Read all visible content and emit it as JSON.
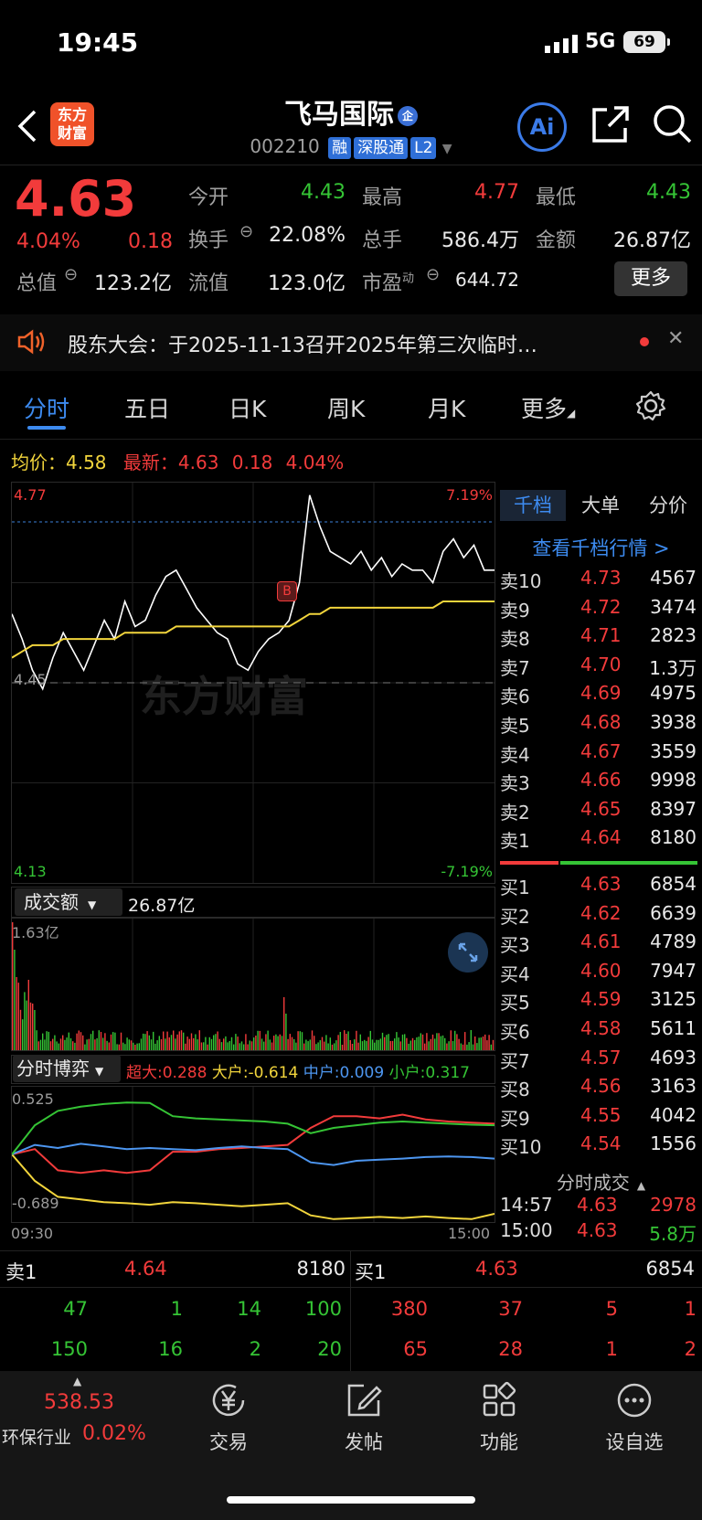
{
  "status": {
    "time": "19:45",
    "network": "5G",
    "battery": "69"
  },
  "header": {
    "logo_text": "东方财富",
    "stock_name": "飞马国际",
    "name_badge": "企",
    "code": "002210",
    "tags": [
      "融",
      "深股通",
      "L2"
    ]
  },
  "quote": {
    "price": "4.63",
    "change_pct": "4.04%",
    "change": "0.18",
    "rows": [
      [
        {
          "label": "今开",
          "value": "4.43",
          "color": "green"
        },
        {
          "label": "最高",
          "value": "4.77",
          "color": "red"
        },
        {
          "label": "最低",
          "value": "4.43",
          "color": "green"
        }
      ],
      [
        {
          "label": "换手",
          "value": "22.08%",
          "color": "white"
        },
        {
          "label": "总手",
          "value": "586.4万",
          "color": "white"
        },
        {
          "label": "金额",
          "value": "26.87亿",
          "color": "white"
        }
      ],
      [
        {
          "label": "总值",
          "value": "123.2亿",
          "color": "white"
        },
        {
          "label": "流值",
          "value": "123.0亿",
          "color": "white"
        },
        {
          "label": "市盈",
          "sup": "动",
          "value": "644.72",
          "color": "white"
        }
      ]
    ],
    "more_label": "更多"
  },
  "notice": {
    "text": "股东大会：于2025-11-13召开2025年第三次临时…"
  },
  "tabs": [
    "分时",
    "五日",
    "日K",
    "周K",
    "月K",
    "更多"
  ],
  "avg": {
    "label": "均价：",
    "value": "4.58",
    "latest_label": "最新：",
    "latest": "4.63",
    "change": "0.18",
    "pct": "4.04%"
  },
  "chart_data": {
    "type": "line",
    "title": "",
    "y_high": "4.77",
    "y_low": "4.13",
    "pct_high": "7.19%",
    "pct_low": "-7.19%",
    "prev_close": "4.45",
    "ylim": [
      4.13,
      4.77
    ],
    "watermark": "东方财富",
    "buy_marker": "B",
    "price_series": [
      4.56,
      4.52,
      4.47,
      4.44,
      4.49,
      4.53,
      4.5,
      4.47,
      4.51,
      4.55,
      4.52,
      4.58,
      4.54,
      4.55,
      4.59,
      4.62,
      4.63,
      4.6,
      4.57,
      4.55,
      4.53,
      4.52,
      4.48,
      4.47,
      4.5,
      4.52,
      4.53,
      4.55,
      4.61,
      4.75,
      4.7,
      4.66,
      4.65,
      4.64,
      4.66,
      4.63,
      4.65,
      4.62,
      4.64,
      4.63,
      4.63,
      4.61,
      4.66,
      4.68,
      4.65,
      4.67,
      4.63,
      4.63
    ],
    "avg_series": [
      4.49,
      4.5,
      4.51,
      4.51,
      4.51,
      4.52,
      4.52,
      4.52,
      4.52,
      4.52,
      4.52,
      4.53,
      4.53,
      4.53,
      4.53,
      4.53,
      4.54,
      4.54,
      4.54,
      4.54,
      4.54,
      4.54,
      4.54,
      4.54,
      4.54,
      4.54,
      4.54,
      4.54,
      4.55,
      4.56,
      4.56,
      4.57,
      4.57,
      4.57,
      4.57,
      4.57,
      4.57,
      4.57,
      4.57,
      4.57,
      4.57,
      4.57,
      4.58,
      4.58,
      4.58,
      4.58,
      4.58,
      4.58
    ],
    "amount_label": "成交额",
    "amount_total": "26.87亿",
    "amount_max": "1.63亿",
    "flow_label": "分时博弈",
    "flow_legend": [
      {
        "name": "超大",
        "value": "0.288",
        "color": "#f23b3b"
      },
      {
        "name": "大户",
        "value": "-0.614",
        "color": "#f2d53c"
      },
      {
        "name": "中户",
        "value": "0.009",
        "color": "#4d96f0"
      },
      {
        "name": "小户",
        "value": "0.317",
        "color": "#35c435"
      }
    ],
    "flow_ylim": [
      "0.525",
      "-0.689"
    ],
    "time_start": "09:30",
    "time_end": "15:00"
  },
  "orderbook": {
    "tabs": [
      "千档",
      "大单",
      "分价"
    ],
    "link": "查看千档行情 >",
    "asks": [
      {
        "label": "卖10",
        "price": "4.73",
        "vol": "4567"
      },
      {
        "label": "卖9",
        "price": "4.72",
        "vol": "3474"
      },
      {
        "label": "卖8",
        "price": "4.71",
        "vol": "2823"
      },
      {
        "label": "卖7",
        "price": "4.70",
        "vol": "1.3万"
      },
      {
        "label": "卖6",
        "price": "4.69",
        "vol": "4975"
      },
      {
        "label": "卖5",
        "price": "4.68",
        "vol": "3938"
      },
      {
        "label": "卖4",
        "price": "4.67",
        "vol": "3559"
      },
      {
        "label": "卖3",
        "price": "4.66",
        "vol": "9998"
      },
      {
        "label": "卖2",
        "price": "4.65",
        "vol": "8397"
      },
      {
        "label": "卖1",
        "price": "4.64",
        "vol": "8180"
      }
    ],
    "bids": [
      {
        "label": "买1",
        "price": "4.63",
        "vol": "6854"
      },
      {
        "label": "买2",
        "price": "4.62",
        "vol": "6639"
      },
      {
        "label": "买3",
        "price": "4.61",
        "vol": "4789"
      },
      {
        "label": "买4",
        "price": "4.60",
        "vol": "7947"
      },
      {
        "label": "买5",
        "price": "4.59",
        "vol": "3125"
      },
      {
        "label": "买6",
        "price": "4.58",
        "vol": "5611"
      },
      {
        "label": "买7",
        "price": "4.57",
        "vol": "4693"
      },
      {
        "label": "买8",
        "price": "4.56",
        "vol": "3163"
      },
      {
        "label": "买9",
        "price": "4.55",
        "vol": "4042"
      },
      {
        "label": "买10",
        "price": "4.54",
        "vol": "1556"
      }
    ],
    "ticks_title": "分时成交",
    "ticks": [
      {
        "time": "14:57",
        "price": "4.63",
        "vol": "2978",
        "color": "red"
      },
      {
        "time": "15:00",
        "price": "4.63",
        "vol": "5.8万",
        "color": "green"
      }
    ]
  },
  "queue": {
    "sell": {
      "label": "卖1",
      "price": "4.64",
      "vol": "8180",
      "rows": [
        [
          "47",
          "1",
          "14",
          "100"
        ],
        [
          "150",
          "16",
          "2",
          "20"
        ]
      ]
    },
    "buy": {
      "label": "买1",
      "price": "4.63",
      "vol": "6854",
      "rows": [
        [
          "380",
          "37",
          "5",
          "1"
        ],
        [
          "65",
          "28",
          "1",
          "2"
        ]
      ]
    }
  },
  "nav": {
    "index_value": "538.53",
    "index_name": "环保行业",
    "index_pct": "0.02%",
    "items": [
      {
        "label": "交易",
        "icon": "yen-icon"
      },
      {
        "label": "发帖",
        "icon": "compose-icon"
      },
      {
        "label": "功能",
        "icon": "grid-icon"
      },
      {
        "label": "设自选",
        "icon": "more-icon"
      }
    ]
  }
}
